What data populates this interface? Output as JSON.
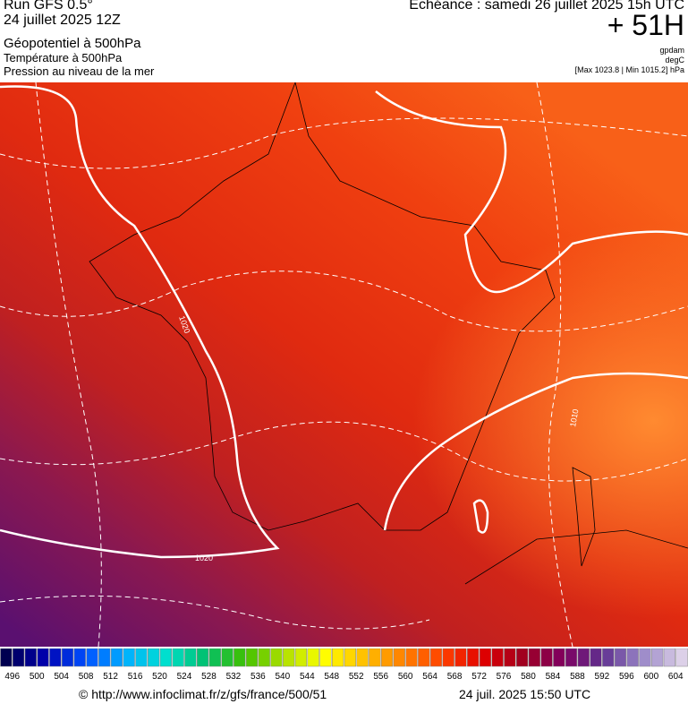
{
  "header": {
    "run": "Run GFS 0.5°",
    "date": "24 juillet 2025 12Z",
    "field1": "Géopotentiel à 500hPa",
    "field2": "Température à 500hPa",
    "field3": "Pression au niveau de la mer",
    "echeance": "Echéance : samedi 26 juillet 2025 15h UTC",
    "offset": "+ 51H",
    "unit1": "gpdam",
    "unit2": "degC",
    "range": "[Max 1023.8 | Min 1015.2] hPa"
  },
  "map": {
    "contour_labels": [
      "1020",
      "1020",
      "1010"
    ]
  },
  "colorbar": {
    "labels": [
      496,
      500,
      504,
      508,
      512,
      516,
      520,
      524,
      528,
      532,
      536,
      540,
      544,
      548,
      552,
      556,
      560,
      564,
      568,
      572,
      576,
      580,
      584,
      588,
      592,
      596,
      600,
      604
    ]
  },
  "footer": {
    "source": "© http://www.infoclimat.fr/z/gfs/france/500/51",
    "timestamp": "24 juil. 2025 15:50 UTC"
  }
}
